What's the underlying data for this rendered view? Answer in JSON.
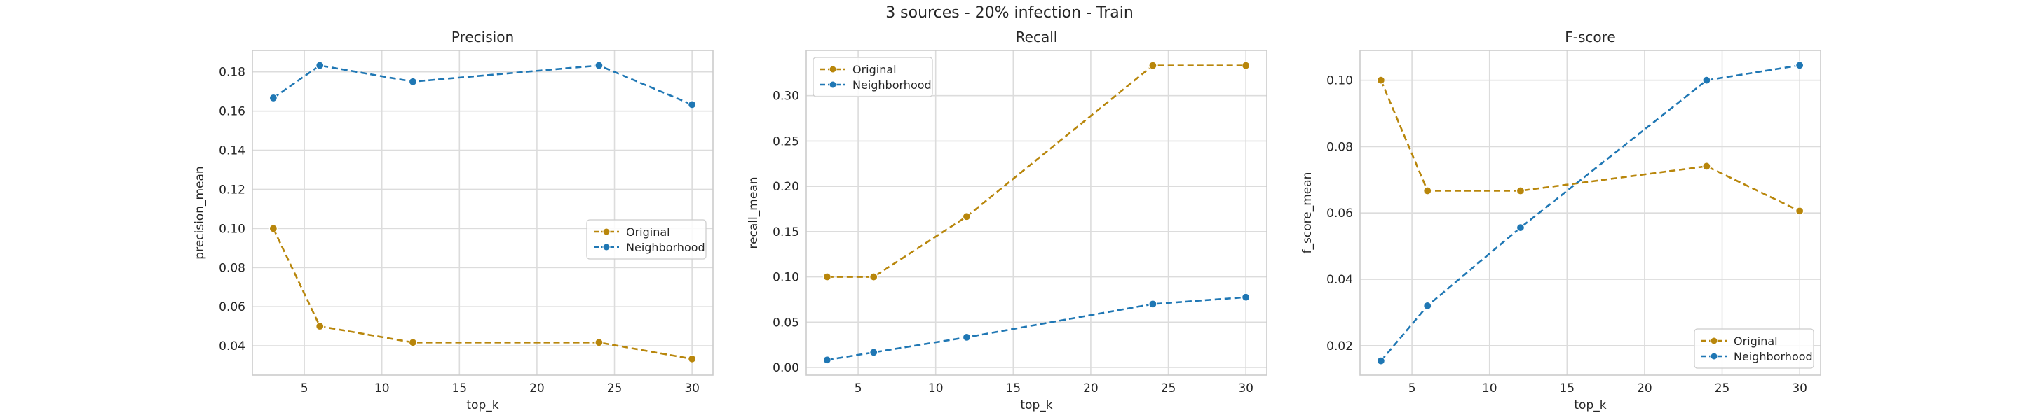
{
  "figure": {
    "suptitle": "3 sources - 20% infection - Train",
    "colors": {
      "Original": "#b8860b",
      "Neighborhood": "#1f77b4"
    },
    "line_style": "dashed",
    "marker": "circle",
    "grid": true,
    "style": "seaborn-whitegrid"
  },
  "chart_data": [
    {
      "type": "line",
      "title": "Precision",
      "xlabel": "top_k",
      "ylabel": "precision_mean",
      "x": [
        3,
        6,
        12,
        24,
        30
      ],
      "xlim": [
        1.65,
        31.35
      ],
      "ylim": [
        0.025,
        0.191
      ],
      "xticks": [
        5,
        10,
        15,
        20,
        25,
        30
      ],
      "yticks": [
        0.04,
        0.06,
        0.08,
        0.1,
        0.12,
        0.14,
        0.16,
        0.18
      ],
      "ytick_labels": [
        "0.04",
        "0.06",
        "0.08",
        "0.10",
        "0.12",
        "0.14",
        "0.16",
        "0.18"
      ],
      "legend_position": "center-right",
      "series": [
        {
          "name": "Original",
          "values": [
            0.1,
            0.05,
            0.0417,
            0.0417,
            0.0333
          ]
        },
        {
          "name": "Neighborhood",
          "values": [
            0.1667,
            0.1833,
            0.175,
            0.1833,
            0.1633
          ]
        }
      ]
    },
    {
      "type": "line",
      "title": "Recall",
      "xlabel": "top_k",
      "ylabel": "recall_mean",
      "x": [
        3,
        6,
        12,
        24,
        30
      ],
      "xlim": [
        1.65,
        31.35
      ],
      "ylim": [
        -0.0085,
        0.35
      ],
      "xticks": [
        5,
        10,
        15,
        20,
        25,
        30
      ],
      "yticks": [
        0.0,
        0.05,
        0.1,
        0.15,
        0.2,
        0.25,
        0.3
      ],
      "ytick_labels": [
        "0.00",
        "0.05",
        "0.10",
        "0.15",
        "0.20",
        "0.25",
        "0.30"
      ],
      "legend_position": "top-left",
      "series": [
        {
          "name": "Original",
          "values": [
            0.1,
            0.1,
            0.1667,
            0.3333,
            0.3333
          ]
        },
        {
          "name": "Neighborhood",
          "values": [
            0.0083,
            0.0167,
            0.0333,
            0.07,
            0.0775
          ]
        }
      ]
    },
    {
      "type": "line",
      "title": "F-score",
      "xlabel": "top_k",
      "ylabel": "f_score_mean",
      "x": [
        3,
        6,
        12,
        24,
        30
      ],
      "xlim": [
        1.65,
        31.35
      ],
      "ylim": [
        0.0111,
        0.109
      ],
      "xticks": [
        5,
        10,
        15,
        20,
        25,
        30
      ],
      "yticks": [
        0.02,
        0.04,
        0.06,
        0.08,
        0.1
      ],
      "ytick_labels": [
        "0.02",
        "0.04",
        "0.06",
        "0.08",
        "0.10"
      ],
      "legend_position": "bottom-right",
      "series": [
        {
          "name": "Original",
          "values": [
            0.1,
            0.0667,
            0.0667,
            0.0741,
            0.0606
          ]
        },
        {
          "name": "Neighborhood",
          "values": [
            0.0154,
            0.032,
            0.0556,
            0.1,
            0.1045
          ]
        }
      ]
    }
  ]
}
